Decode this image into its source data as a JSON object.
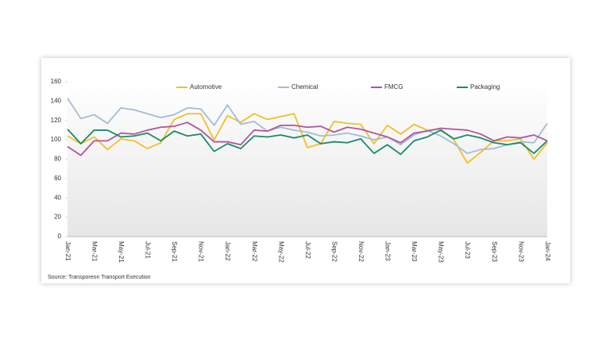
{
  "chart_data": {
    "type": "line",
    "source": "Source: Transporeon Transport Execution",
    "categories": [
      "Jan-21",
      null,
      "Mar-21",
      null,
      "May-21",
      null,
      "Jul-21",
      null,
      "Sep-21",
      null,
      "Nov-21",
      null,
      "Jan-22",
      null,
      "Mar-22",
      null,
      "May-22",
      null,
      "Jul-22",
      null,
      "Sep-22",
      null,
      "Nov-22",
      null,
      "Jan-23",
      null,
      "Mar-23",
      null,
      "May-23",
      null,
      "Jul-23",
      null,
      "Sep-23",
      null,
      "Nov-23",
      null,
      "Jan-24"
    ],
    "series": [
      {
        "name": "Automotive",
        "color": "#f2bf26",
        "values": [
          104,
          96,
          103,
          90,
          101,
          99,
          91,
          97,
          121,
          127,
          127,
          100,
          125,
          118,
          127,
          121,
          124,
          127,
          92,
          96,
          119,
          117,
          116,
          96,
          115,
          106,
          116,
          110,
          111,
          100,
          76,
          87,
          99,
          99,
          101,
          80,
          97
        ]
      },
      {
        "name": "Chemical",
        "color": "#a3bcd6",
        "values": [
          143,
          122,
          126,
          117,
          133,
          131,
          127,
          123,
          126,
          133,
          132,
          115,
          136,
          116,
          119,
          109,
          113,
          110,
          108,
          104,
          105,
          107,
          104,
          100,
          103,
          95,
          105,
          110,
          104,
          96,
          86,
          90,
          91,
          95,
          98,
          97,
          117
        ]
      },
      {
        "name": "FMCG",
        "color": "#b0569e",
        "values": [
          93,
          84,
          99,
          99,
          107,
          106,
          110,
          113,
          114,
          118,
          110,
          98,
          98,
          95,
          110,
          109,
          115,
          115,
          113,
          114,
          108,
          113,
          111,
          107,
          103,
          97,
          107,
          109,
          112,
          111,
          110,
          106,
          99,
          103,
          102,
          105,
          99
        ]
      },
      {
        "name": "Packaging",
        "color": "#1a8c6b",
        "values": [
          111,
          96,
          110,
          110,
          103,
          104,
          107,
          99,
          109,
          104,
          106,
          88,
          96,
          91,
          104,
          103,
          105,
          102,
          105,
          96,
          98,
          97,
          101,
          86,
          95,
          85,
          99,
          103,
          110,
          101,
          105,
          102,
          97,
          95,
          97,
          86,
          99
        ]
      }
    ],
    "ylim": [
      0,
      160
    ],
    "yticks": [
      0,
      20,
      40,
      60,
      80,
      100,
      120,
      140,
      160
    ],
    "legend": "top"
  }
}
